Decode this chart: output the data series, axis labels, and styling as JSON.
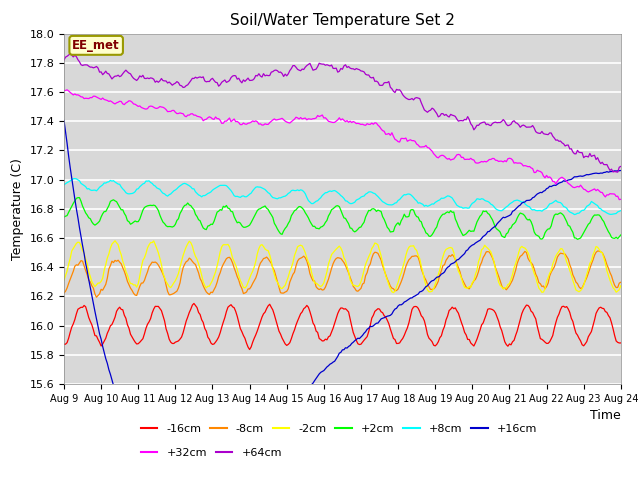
{
  "title": "Soil/Water Temperature Set 2",
  "xlabel": "Time",
  "ylabel": "Temperature (C)",
  "ylim": [
    15.6,
    18.0
  ],
  "xlim": [
    0,
    360
  ],
  "plot_bg_color": "#d8d8d8",
  "fig_bg_color": "#ffffff",
  "series": [
    {
      "label": "-16cm",
      "color": "#ff0000"
    },
    {
      "label": "-8cm",
      "color": "#ff8800"
    },
    {
      "label": "-2cm",
      "color": "#ffff00"
    },
    {
      "label": "+2cm",
      "color": "#00ff00"
    },
    {
      "label": "+8cm",
      "color": "#00ffff"
    },
    {
      "label": "+16cm",
      "color": "#0000cc"
    },
    {
      "label": "+32cm",
      "color": "#ff00ff"
    },
    {
      "label": "+64cm",
      "color": "#aa00cc"
    }
  ],
  "xtick_positions": [
    0,
    24,
    48,
    72,
    96,
    120,
    144,
    168,
    192,
    216,
    240,
    264,
    288,
    312,
    336,
    360
  ],
  "xtick_labels": [
    "Aug 9",
    "Aug 10",
    "Aug 11",
    "Aug 12",
    "Aug 13",
    "Aug 14",
    "Aug 15",
    "Aug 16",
    "Aug 17",
    "Aug 18",
    "Aug 19",
    "Aug 20",
    "Aug 21",
    "Aug 22",
    "Aug 23",
    "Aug 24"
  ],
  "ytick_positions": [
    15.6,
    15.8,
    16.0,
    16.2,
    16.4,
    16.6,
    16.8,
    17.0,
    17.2,
    17.4,
    17.6,
    17.8,
    18.0
  ],
  "watermark": "EE_met",
  "grid_color": "#ffffff"
}
